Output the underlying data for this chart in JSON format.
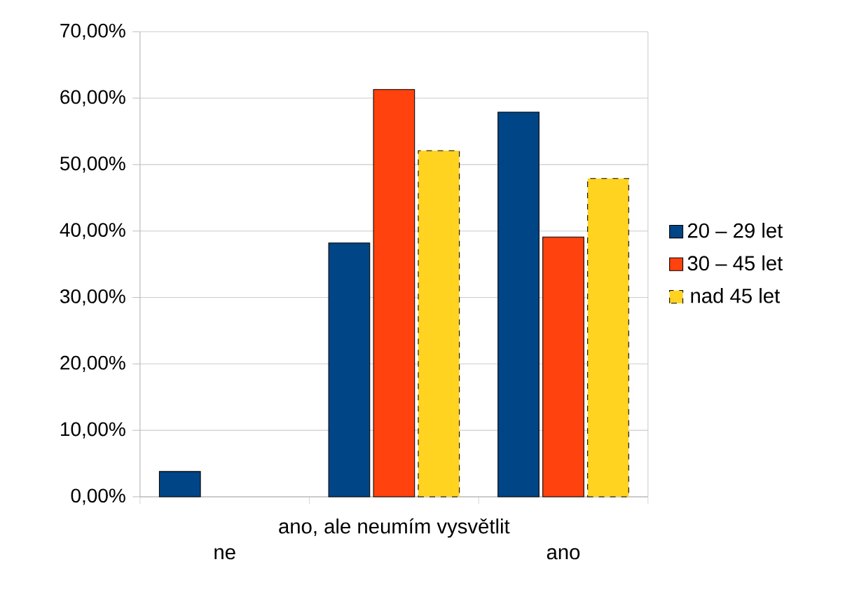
{
  "chart_data": {
    "type": "bar",
    "categories": [
      "ne",
      "ano, ale neumím vysvětlit",
      "ano"
    ],
    "series": [
      {
        "name": "20 – 29 let",
        "color": "#004586",
        "values": [
          3.8,
          38.2,
          57.9
        ]
      },
      {
        "name": "30 – 45 let",
        "color": "#ff420e",
        "values": [
          null,
          61.3,
          39.1
        ]
      },
      {
        "name": "nad 45 let",
        "color": "#ffd320",
        "values": [
          null,
          52.1,
          47.9
        ]
      }
    ],
    "ylim": [
      0,
      70
    ],
    "yticks": [
      {
        "value": 0,
        "label": "0,00%"
      },
      {
        "value": 10,
        "label": "10,00%"
      },
      {
        "value": 20,
        "label": "20,00%"
      },
      {
        "value": 30,
        "label": "30,00%"
      },
      {
        "value": 40,
        "label": "40,00%"
      },
      {
        "value": 50,
        "label": "50,00%"
      },
      {
        "value": 60,
        "label": "60,00%"
      },
      {
        "value": 70,
        "label": "70,00%"
      }
    ],
    "grid": "y",
    "legend": "right"
  }
}
